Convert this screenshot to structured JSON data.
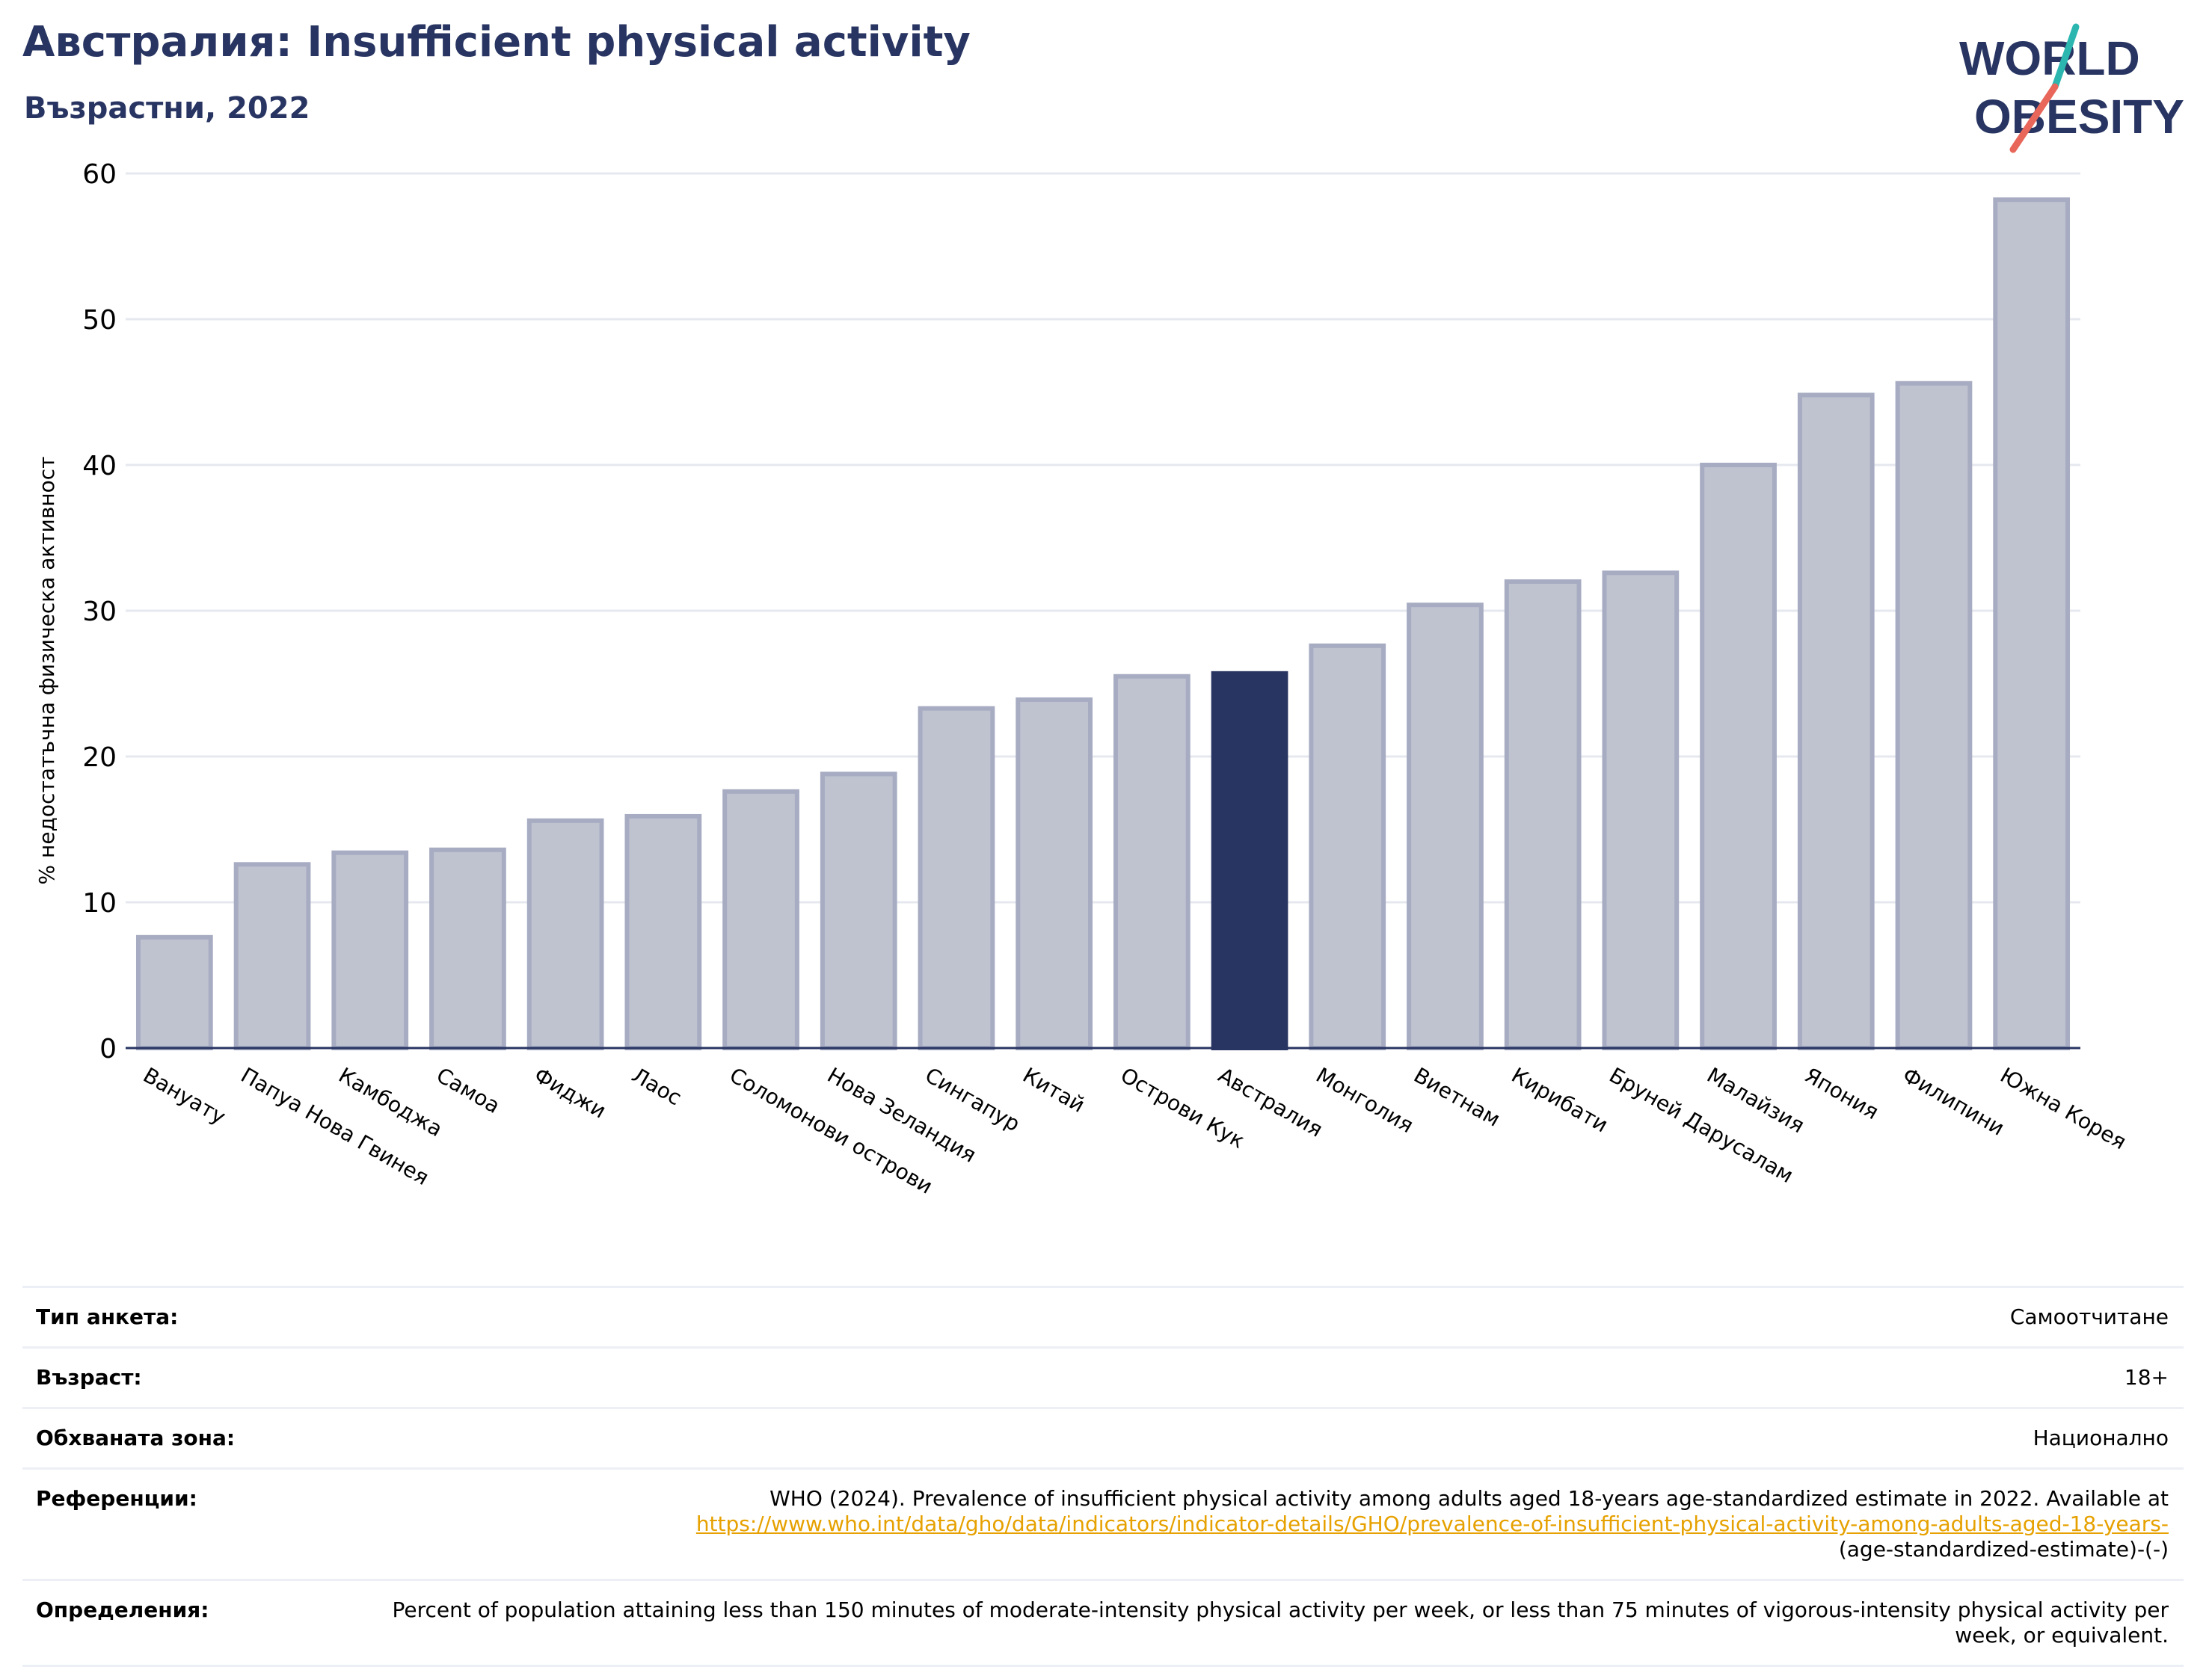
{
  "header": {
    "title": "Австралия: Insufficient physical activity",
    "subtitle": "Възрастни, 2022"
  },
  "logo": {
    "line1": "WORLD",
    "line2": "OBESITY",
    "teal": "#2bb6b0",
    "coral": "#e8675a",
    "navy": "#283562"
  },
  "colors": {
    "highlight": "#283562",
    "bar": "#bfc3d0",
    "bar_edge": "#a7acc2",
    "grid": "#e6e8ef",
    "axis": "#283562"
  },
  "chart_data": {
    "type": "bar",
    "ylabel": "% недостатъчна физическа активност",
    "xlabel": "",
    "ylim": [
      0,
      60
    ],
    "yticks": [
      "0",
      "10",
      "20",
      "30",
      "40",
      "50",
      "60"
    ],
    "grid": true,
    "categories": [
      "Вануату",
      "Папуа Нова Гвинея",
      "Камбоджа",
      "Самоа",
      "Фиджи",
      "Лаос",
      "Соломонови острови",
      "Нова Зеландия",
      "Сингапур",
      "Китай",
      "Острови Кук",
      "Австралия",
      "Монголия",
      "Виетнам",
      "Кирибати",
      "Бруней Дарусалам",
      "Малайзия",
      "Япония",
      "Филипини",
      "Южна Корея"
    ],
    "values": [
      7.6,
      12.6,
      13.4,
      13.6,
      15.6,
      15.9,
      17.6,
      18.8,
      23.3,
      23.9,
      25.5,
      25.7,
      27.6,
      30.4,
      32.0,
      32.6,
      40.0,
      44.8,
      45.6,
      58.2
    ],
    "highlight": "Австралия"
  },
  "meta": {
    "survey_label": "Тип анкета:",
    "survey_value": "Самоотчитане",
    "age_label": "Възраст:",
    "age_value": "18+",
    "area_label": "Обхваната зона:",
    "area_value": "Национално",
    "ref_label": "Референции:",
    "ref_text": "WHO (2024). Prevalence of insufficient physical activity among adults aged 18-years age-standardized estimate in 2022. Available at",
    "ref_link": "https://www.who.int/data/gho/data/indicators/indicator-details/GHO/prevalence-of-insufficient-physical-activity-among-adults-aged-18-years-",
    "ref_tail": "(age-standardized-estimate)-(-)",
    "def_label": "Определения:",
    "def_text": "Percent of population attaining less than 150 minutes of moderate-intensity physical activity per week, or less than 75 minutes of vigorous-intensity physical activity per week, or equivalent."
  }
}
